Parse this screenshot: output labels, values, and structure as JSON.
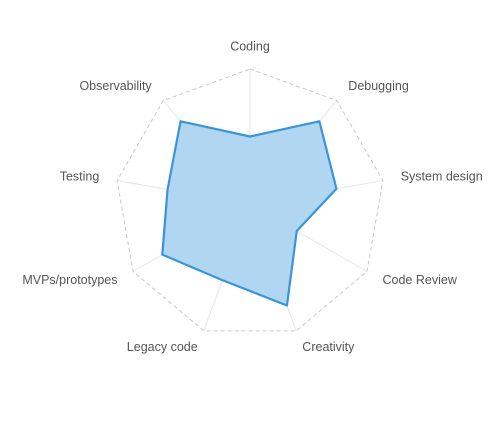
{
  "chart_data": {
    "type": "radar",
    "axes": [
      "Coding",
      "Debugging",
      "System design",
      "Code Review",
      "Creativity",
      "Legacy code",
      "MVPs/prototypes",
      "Testing",
      "Observability"
    ],
    "series": [
      {
        "values": [
          0.5,
          0.8,
          0.65,
          0.4,
          0.8,
          0.6,
          0.75,
          0.62,
          0.8
        ]
      }
    ],
    "rmax": 1,
    "grid": true,
    "grid_style": "dashed",
    "colors": {
      "fill": "#acd4f0",
      "stroke": "#3a95d8",
      "grid": "#c8c8c8",
      "spoke": "#e6e6e6",
      "label": "#555555"
    }
  }
}
